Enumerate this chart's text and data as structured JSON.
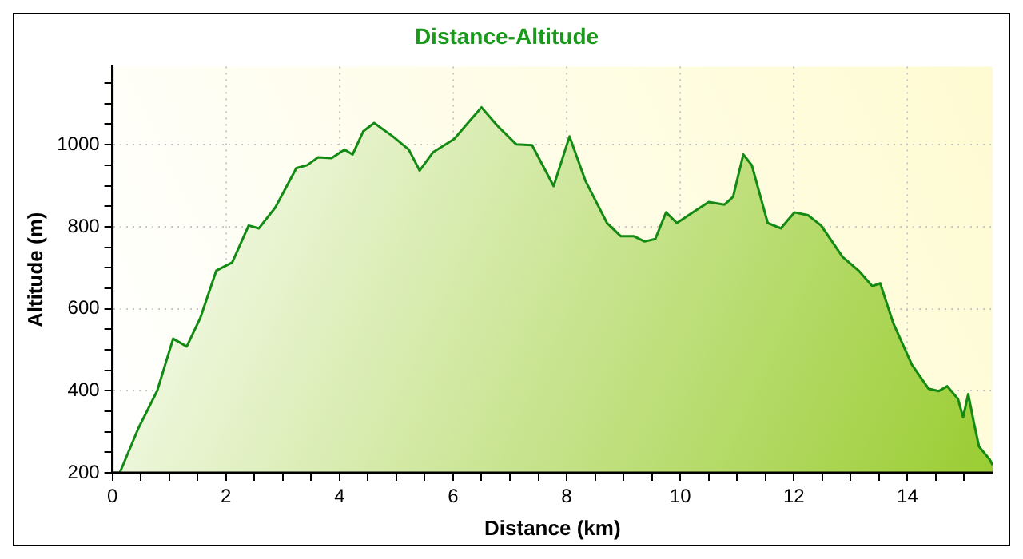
{
  "chart_data": {
    "type": "area",
    "title": "Distance-Altitude",
    "xlabel": "Distance (km)",
    "ylabel": "Altitude (m)",
    "x": [
      0,
      0.13,
      0.46,
      0.79,
      1.07,
      1.31,
      1.55,
      1.83,
      2.11,
      2.4,
      2.58,
      2.87,
      3.24,
      3.43,
      3.62,
      3.86,
      4.09,
      4.23,
      4.42,
      4.61,
      4.94,
      5.22,
      5.41,
      5.65,
      6.02,
      6.26,
      6.5,
      6.78,
      7.11,
      7.39,
      7.77,
      8.05,
      8.33,
      8.71,
      8.95,
      9.18,
      9.37,
      9.56,
      9.75,
      9.94,
      10.22,
      10.5,
      10.78,
      10.93,
      11.11,
      11.26,
      11.54,
      11.77,
      12.01,
      12.25,
      12.48,
      12.86,
      13.14,
      13.38,
      13.52,
      13.75,
      14.08,
      14.37,
      14.55,
      14.7,
      14.89,
      14.98,
      15.07,
      15.17,
      15.26,
      15.45,
      15.5
    ],
    "series": [
      {
        "color": "#138a13",
        "values": [
          200,
          200,
          309,
          400,
          527,
          508,
          578,
          693,
          713,
          803,
          796,
          847,
          943,
          950,
          969,
          967,
          988,
          976,
          1033,
          1053,
          1020,
          988,
          937,
          982,
          1014,
          1053,
          1091,
          1046,
          1001,
          999,
          899,
          1020,
          912,
          809,
          777,
          777,
          764,
          770,
          835,
          809,
          835,
          860,
          854,
          873,
          976,
          950,
          809,
          796,
          835,
          828,
          803,
          726,
          693,
          655,
          662,
          565,
          463,
          405,
          399,
          411,
          380,
          335,
          392,
          322,
          264,
          232,
          219
        ]
      }
    ],
    "xlim": [
      0,
      15.5
    ],
    "xticks": [
      0,
      {
        "value": 0.5,
        "label": null
      },
      2,
      {
        "value": 1,
        "label": null
      },
      {
        "value": 1.5,
        "label": null
      },
      {
        "value": 2.5,
        "label": null
      },
      {
        "value": 3,
        "label": null
      },
      {
        "value": 3.5,
        "label": null
      },
      4,
      {
        "value": 4.5,
        "label": null
      },
      {
        "value": 5,
        "label": null
      },
      {
        "value": 5.5,
        "label": null
      },
      6,
      {
        "value": 6.5,
        "label": null
      },
      {
        "value": 7,
        "label": null
      },
      {
        "value": 7.5,
        "label": null
      },
      8,
      {
        "value": 8.5,
        "label": null
      },
      {
        "value": 9,
        "label": null
      },
      {
        "value": 9.5,
        "label": null
      },
      10,
      {
        "value": 10.5,
        "label": null
      },
      {
        "value": 11,
        "label": null
      },
      {
        "value": 11.5,
        "label": null
      },
      12,
      {
        "value": 12.5,
        "label": null
      },
      {
        "value": 13,
        "label": null
      },
      {
        "value": 13.5,
        "label": null
      },
      14,
      {
        "value": 14.5,
        "label": null
      },
      {
        "value": 15,
        "label": null
      }
    ],
    "ylim": [
      200,
      1190
    ],
    "yticks": [
      200,
      {
        "value": 250,
        "label": null
      },
      {
        "value": 300,
        "label": null
      },
      {
        "value": 350,
        "label": null
      },
      400,
      {
        "value": 450,
        "label": null
      },
      {
        "value": 500,
        "label": null
      },
      {
        "value": 550,
        "label": null
      },
      600,
      {
        "value": 650,
        "label": null
      },
      {
        "value": 700,
        "label": null
      },
      {
        "value": 750,
        "label": null
      },
      800,
      {
        "value": 850,
        "label": null
      },
      {
        "value": 900,
        "label": null
      },
      {
        "value": 950,
        "label": null
      },
      1000,
      {
        "value": 1050,
        "label": null
      },
      {
        "value": 1100,
        "label": null
      },
      {
        "value": 1150,
        "label": null
      }
    ],
    "grid": true,
    "legend": false,
    "marker": "none",
    "line_style": "solid"
  }
}
